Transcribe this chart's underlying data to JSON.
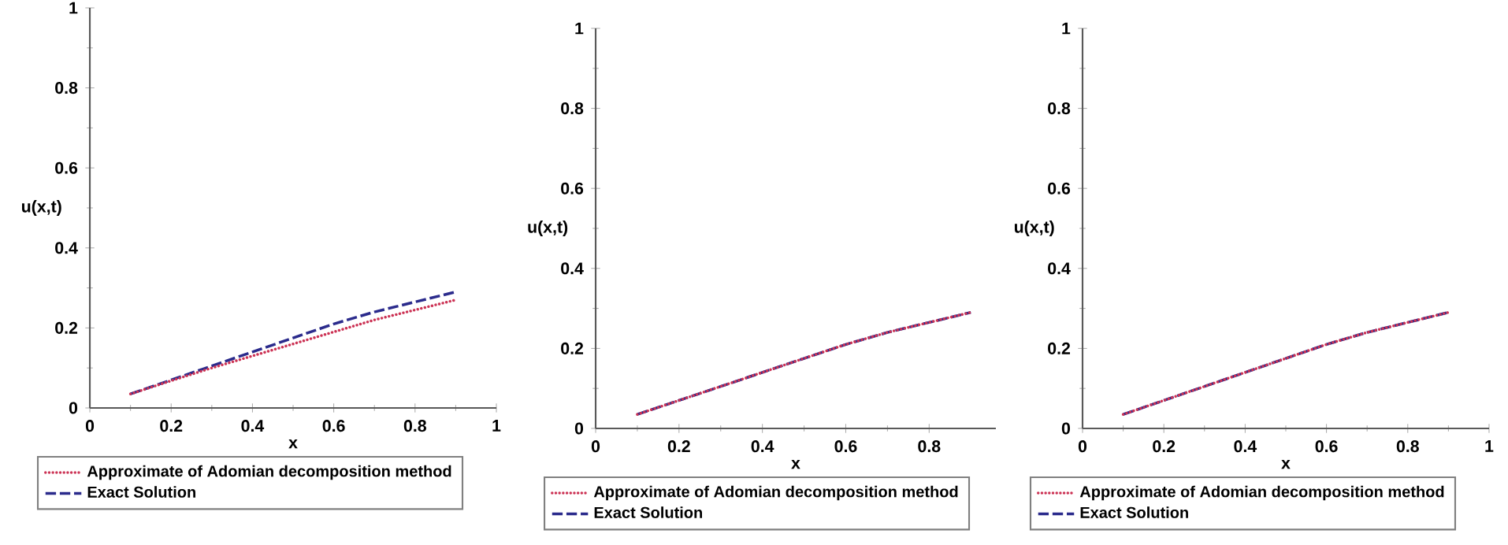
{
  "chart_data": [
    {
      "type": "line",
      "xlabel": "x",
      "ylabel": "u(x,t)",
      "xlim": [
        0,
        1
      ],
      "ylim": [
        0,
        1
      ],
      "xticks": [
        0,
        0.2,
        0.4,
        0.6,
        0.8,
        1
      ],
      "yticks": [
        0,
        0.2,
        0.4,
        0.6,
        0.8,
        1
      ],
      "legend": "bottom",
      "x": [
        0.1,
        0.2,
        0.3,
        0.4,
        0.5,
        0.6,
        0.7,
        0.8,
        0.9
      ],
      "series": [
        {
          "name": "Approximate of Adomian decomposition method",
          "color": "#cc3355",
          "line_style": "dotted",
          "values": [
            0.035,
            0.068,
            0.1,
            0.13,
            0.16,
            0.19,
            0.22,
            0.245,
            0.27
          ]
        },
        {
          "name": "Exact Solution",
          "color": "#2b2b8c",
          "line_style": "dashed",
          "values": [
            0.035,
            0.07,
            0.105,
            0.14,
            0.175,
            0.21,
            0.24,
            0.265,
            0.29
          ]
        }
      ]
    },
    {
      "type": "line",
      "xlabel": "x",
      "ylabel": "u(x,t)",
      "xlim": [
        0,
        0.96
      ],
      "ylim": [
        0,
        1
      ],
      "xticks": [
        0,
        0.2,
        0.4,
        0.6,
        0.8
      ],
      "yticks": [
        0,
        0.2,
        0.4,
        0.6,
        0.8,
        1
      ],
      "legend": "bottom",
      "x": [
        0.1,
        0.2,
        0.3,
        0.4,
        0.5,
        0.6,
        0.7,
        0.8,
        0.9
      ],
      "series": [
        {
          "name": "Approximate of Adomian decomposition method",
          "color": "#cc3355",
          "line_style": "dotted",
          "values": [
            0.035,
            0.07,
            0.105,
            0.14,
            0.175,
            0.21,
            0.24,
            0.265,
            0.29
          ]
        },
        {
          "name": "Exact Solution",
          "color": "#2b2b8c",
          "line_style": "dashed",
          "values": [
            0.035,
            0.07,
            0.105,
            0.14,
            0.175,
            0.21,
            0.24,
            0.265,
            0.29
          ]
        }
      ]
    },
    {
      "type": "line",
      "xlabel": "x",
      "ylabel": "u(x,t)",
      "xlim": [
        0,
        1
      ],
      "ylim": [
        0,
        1
      ],
      "xticks": [
        0,
        0.2,
        0.4,
        0.6,
        0.8,
        1
      ],
      "yticks": [
        0,
        0.2,
        0.4,
        0.6,
        0.8,
        1
      ],
      "legend": "bottom",
      "x": [
        0.1,
        0.2,
        0.3,
        0.4,
        0.5,
        0.6,
        0.7,
        0.8,
        0.9
      ],
      "series": [
        {
          "name": "Approximate of Adomian decomposition method",
          "color": "#cc3355",
          "line_style": "dotted",
          "values": [
            0.035,
            0.07,
            0.105,
            0.14,
            0.175,
            0.21,
            0.24,
            0.265,
            0.29
          ]
        },
        {
          "name": "Exact Solution",
          "color": "#2b2b8c",
          "line_style": "dashed",
          "values": [
            0.035,
            0.07,
            0.105,
            0.14,
            0.175,
            0.21,
            0.24,
            0.265,
            0.29
          ]
        }
      ]
    }
  ]
}
